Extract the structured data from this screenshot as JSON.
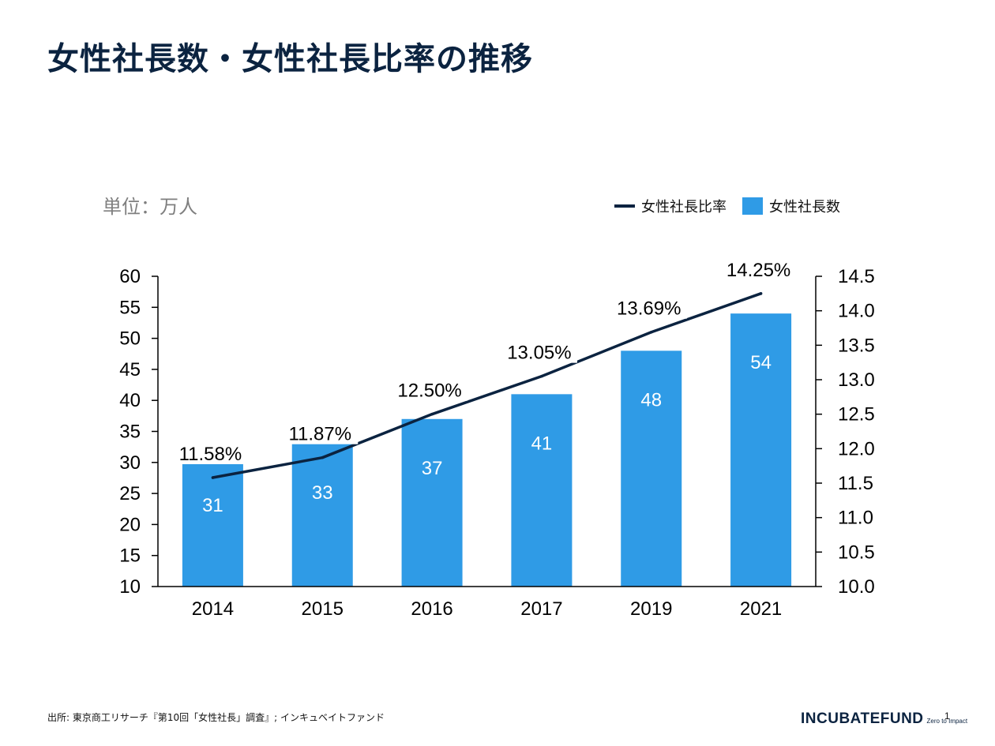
{
  "title": "女性社長数・女性社長比率の推移",
  "unit_label": "単位：万人",
  "legend": {
    "line_label": "女性社長比率",
    "bar_label": "女性社長数"
  },
  "colors": {
    "bar": "#2f9be6",
    "line": "#0b2340",
    "title": "#0b2340"
  },
  "chart_data": {
    "type": "bar",
    "categories": [
      "2014",
      "2015",
      "2016",
      "2017",
      "2019",
      "2021"
    ],
    "series": [
      {
        "name": "女性社長数",
        "type": "bar",
        "axis": "left",
        "values": [
          31,
          33,
          37,
          41,
          48,
          54
        ],
        "labels": [
          "31",
          "33",
          "37",
          "41",
          "48",
          "54"
        ]
      },
      {
        "name": "女性社長比率",
        "type": "line",
        "axis": "right",
        "values": [
          11.58,
          11.87,
          12.5,
          13.05,
          13.69,
          14.25
        ],
        "labels": [
          "11.58%",
          "11.87%",
          "12.50%",
          "13.05%",
          "13.69%",
          "14.25%"
        ]
      }
    ],
    "y_left": {
      "range": [
        10,
        60
      ],
      "ticks": [
        "10",
        "15",
        "20",
        "25",
        "30",
        "35",
        "40",
        "45",
        "50",
        "55",
        "60"
      ]
    },
    "y_right": {
      "range": [
        10.0,
        14.5
      ],
      "ticks": [
        "10.0",
        "10.5",
        "11.0",
        "11.5",
        "12.0",
        "12.5",
        "13.0",
        "13.5",
        "14.0",
        "14.5"
      ]
    },
    "grid": false,
    "legend_position": "top-right"
  },
  "footer": {
    "source": "出所: 東京商工リサーチ『第10回「女性社長」調査』; インキュベイトファンド",
    "logo_main": "INCUBATEFUND",
    "logo_sub": "Zero to Impact",
    "page": "1"
  }
}
